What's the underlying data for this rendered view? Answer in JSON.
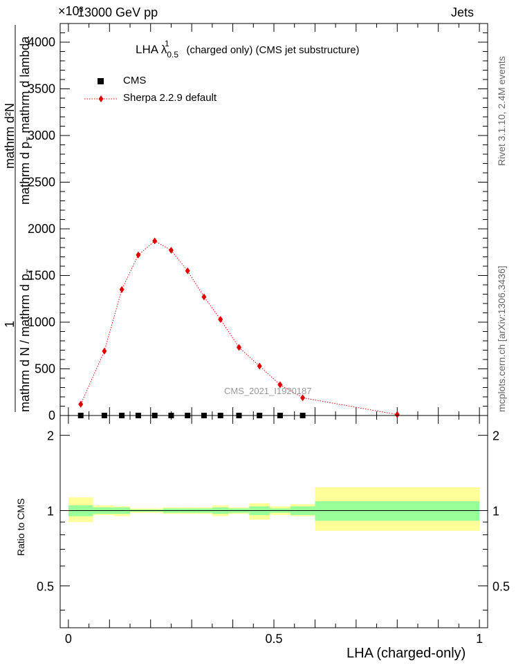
{
  "header": {
    "left": "13000 GeV pp",
    "right": "Jets",
    "exponent": "×10³"
  },
  "side": {
    "top": "Rivet 3.1.10,  2.4M events",
    "bottom": "mcplots.cern.ch [arXiv:1306.3436]"
  },
  "chart_data": [
    {
      "type": "scatter",
      "title_prefix": "LHA λ",
      "title_sup": "1",
      "title_sub": "0.5",
      "title_suffix": "(charged only) (CMS jet substructure)",
      "watermark": "CMS_2021_I1920187",
      "ylabel_num": "mathrm d²N",
      "ylabel_num_a": "mathrm d p",
      "ylabel_num_sub": "T",
      "ylabel_num_b": "mathrm d lambda",
      "ylabel_den": "1",
      "ylabel_den_full": "mathrm d N / mathrm d p",
      "ylabel_den_sub": "T",
      "yticks": [
        "0",
        "500",
        "1000",
        "1500",
        "2000",
        "2500",
        "3000",
        "3500",
        "4000"
      ],
      "ylim": [
        0,
        4200
      ],
      "xlim": [
        -0.02,
        1.02
      ],
      "legend_position": "top-left",
      "series": [
        {
          "name": "CMS",
          "color": "#000000",
          "marker": "square",
          "x": [
            0.03,
            0.0875,
            0.13,
            0.17,
            0.21,
            0.25,
            0.29,
            0.33,
            0.37,
            0.415,
            0.465,
            0.515,
            0.57
          ],
          "values": [
            0,
            0,
            0,
            0,
            0,
            0,
            0,
            0,
            0,
            0,
            0,
            0,
            0
          ]
        },
        {
          "name": "Sherpa 2.2.9 default",
          "color": "#e00000",
          "marker": "diamond",
          "x": [
            0.03,
            0.0875,
            0.13,
            0.17,
            0.21,
            0.25,
            0.29,
            0.33,
            0.37,
            0.415,
            0.465,
            0.515,
            0.57,
            0.8
          ],
          "values": [
            120,
            690,
            1350,
            1720,
            1870,
            1770,
            1550,
            1270,
            1030,
            730,
            530,
            330,
            190,
            10
          ]
        }
      ]
    },
    {
      "type": "ratio",
      "ylabel": "Ratio to CMS",
      "xlabel": "LHA (charged-only)",
      "xticks": [
        "0",
        "0.5",
        "1"
      ],
      "yticks": [
        "0.5",
        "1",
        "2"
      ],
      "ylim": [
        0.34,
        2.4
      ],
      "xlim": [
        -0.02,
        1.02
      ],
      "bands": {
        "bin_edges": [
          0.0,
          0.06,
          0.11,
          0.15,
          0.19,
          0.23,
          0.27,
          0.31,
          0.35,
          0.39,
          0.44,
          0.49,
          0.54,
          0.6,
          1.0
        ],
        "inner_low": [
          0.95,
          0.97,
          0.97,
          0.99,
          0.99,
          0.98,
          0.98,
          0.98,
          0.97,
          0.98,
          0.96,
          0.98,
          0.96,
          0.91
        ],
        "inner_high": [
          1.05,
          1.03,
          1.03,
          1.01,
          1.01,
          1.02,
          1.02,
          1.02,
          1.03,
          1.02,
          1.04,
          1.02,
          1.04,
          1.09
        ],
        "outer_low": [
          0.9,
          0.96,
          0.95,
          0.98,
          0.98,
          0.97,
          0.97,
          0.97,
          0.95,
          0.97,
          0.92,
          0.96,
          0.95,
          0.83
        ],
        "outer_high": [
          1.13,
          1.05,
          1.04,
          1.02,
          1.02,
          1.03,
          1.03,
          1.03,
          1.05,
          1.03,
          1.07,
          1.04,
          1.06,
          1.24
        ],
        "inner_color": "#99ff99",
        "outer_color": "#ffff99"
      }
    }
  ]
}
